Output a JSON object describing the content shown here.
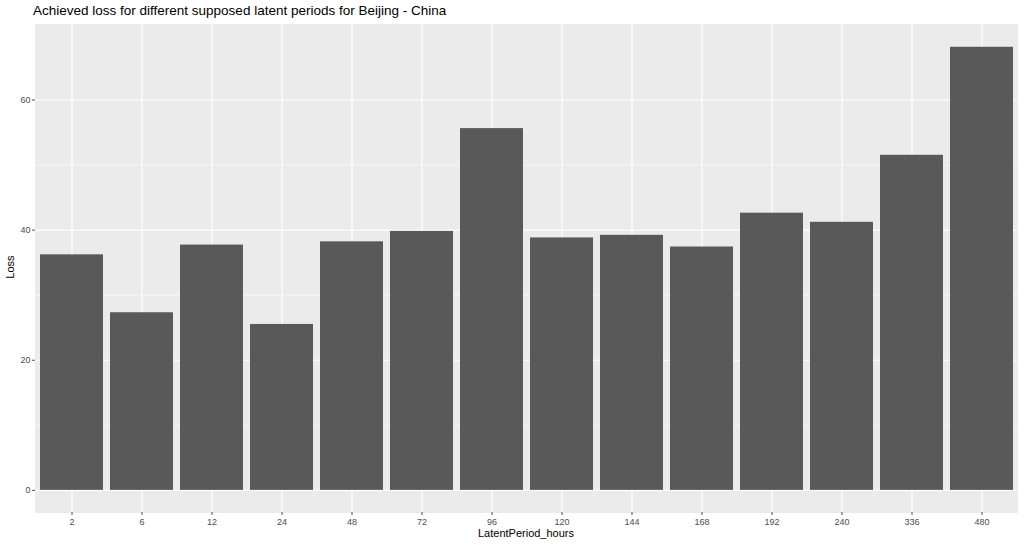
{
  "chart_data": {
    "type": "bar",
    "title": "Achieved loss for different supposed latent periods for Beijing - China",
    "x_label": "LatentPeriod_hours",
    "y_label": "Loss",
    "categories": [
      "2",
      "6",
      "12",
      "24",
      "48",
      "72",
      "96",
      "120",
      "144",
      "168",
      "192",
      "240",
      "336",
      "480"
    ],
    "values": [
      36.2,
      27.3,
      37.7,
      25.5,
      38.2,
      39.8,
      55.6,
      38.8,
      39.2,
      37.4,
      42.6,
      41.2,
      51.5,
      68.1
    ],
    "color": "#595959",
    "ylim": [
      -3.4,
      71.6
    ],
    "yticks": [
      0,
      20,
      40,
      60
    ],
    "grid": true
  }
}
